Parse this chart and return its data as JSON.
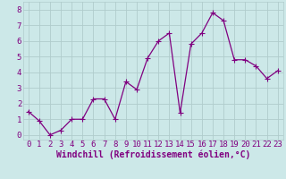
{
  "x": [
    0,
    1,
    2,
    3,
    4,
    5,
    6,
    7,
    8,
    9,
    10,
    11,
    12,
    13,
    14,
    15,
    16,
    17,
    18,
    19,
    20,
    21,
    22,
    23
  ],
  "y": [
    1.5,
    0.9,
    0.0,
    0.3,
    1.0,
    1.0,
    2.3,
    2.3,
    1.0,
    3.4,
    2.9,
    4.9,
    6.0,
    6.5,
    1.4,
    5.8,
    6.5,
    7.8,
    7.3,
    4.8,
    4.8,
    4.4,
    3.6,
    4.1
  ],
  "line_color": "#800080",
  "marker": "+",
  "marker_size": 4,
  "bg_color": "#cce8e8",
  "grid_color": "#b0cccc",
  "xlabel": "Windchill (Refroidissement éolien,°C)",
  "tick_color": "#800080",
  "label_color": "#800080",
  "ylim": [
    -0.3,
    8.5
  ],
  "xlim": [
    -0.5,
    23.5
  ],
  "yticks": [
    0,
    1,
    2,
    3,
    4,
    5,
    6,
    7,
    8
  ],
  "xticks": [
    0,
    1,
    2,
    3,
    4,
    5,
    6,
    7,
    8,
    9,
    10,
    11,
    12,
    13,
    14,
    15,
    16,
    17,
    18,
    19,
    20,
    21,
    22,
    23
  ],
  "font_size": 6.5,
  "xlabel_font_size": 7,
  "line_width": 0.9
}
